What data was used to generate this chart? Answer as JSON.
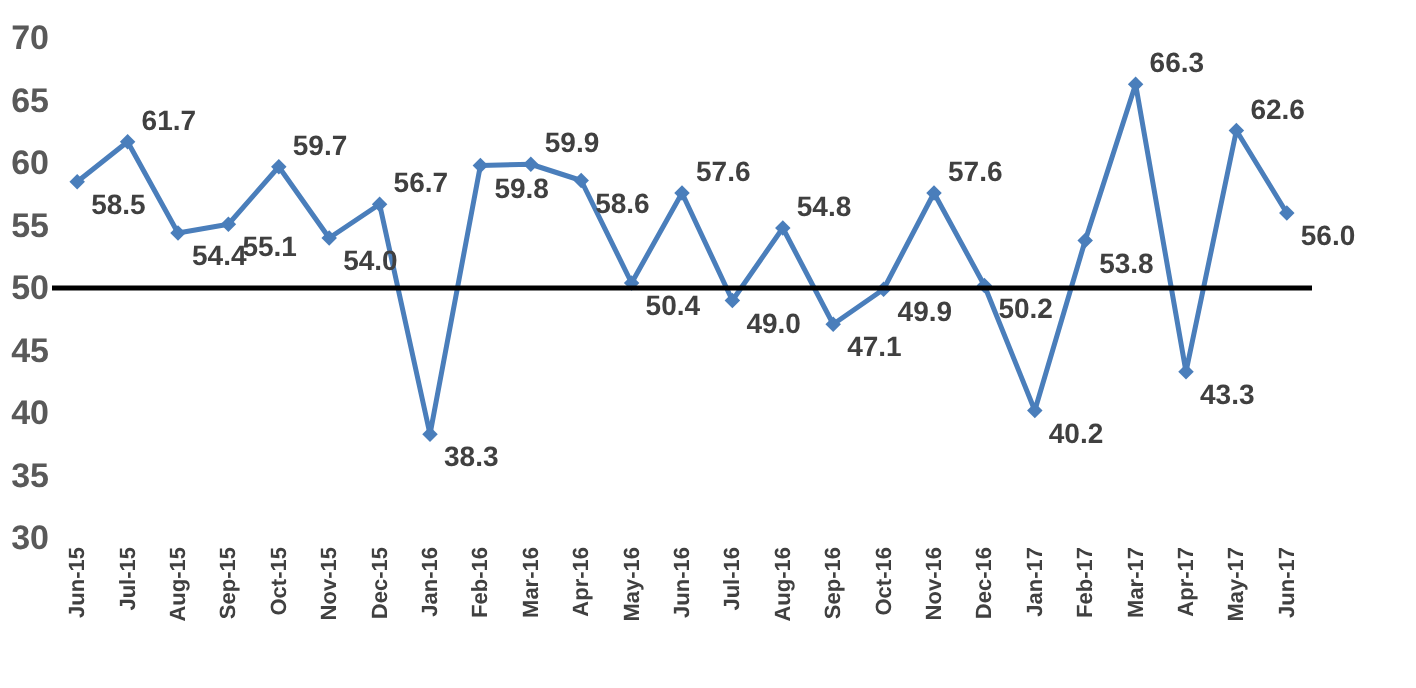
{
  "chart_data": {
    "type": "line",
    "categories": [
      "Jun-15",
      "Jul-15",
      "Aug-15",
      "Sep-15",
      "Oct-15",
      "Nov-15",
      "Dec-15",
      "Jan-16",
      "Feb-16",
      "Mar-16",
      "Apr-16",
      "May-16",
      "Jun-16",
      "Jul-16",
      "Aug-16",
      "Sep-16",
      "Oct-16",
      "Nov-16",
      "Dec-16",
      "Jan-17",
      "Feb-17",
      "Mar-17",
      "Apr-17",
      "May-17",
      "Jun-17"
    ],
    "series": [
      {
        "color": "#4a7ebb",
        "values": [
          58.5,
          61.7,
          54.4,
          55.1,
          59.7,
          54.0,
          56.7,
          38.3,
          59.8,
          59.9,
          58.6,
          50.4,
          57.6,
          49.0,
          54.8,
          47.1,
          49.9,
          57.6,
          50.2,
          40.2,
          53.8,
          66.3,
          43.3,
          62.6,
          56.0
        ],
        "value_labels": [
          "58.5",
          "61.7",
          "54.4",
          "55.1",
          "59.7",
          "54.0",
          "56.7",
          "38.3",
          "59.8",
          "59.9",
          "58.6",
          "50.4",
          "57.6",
          "49.0",
          "54.8",
          "47.1",
          "49.9",
          "57.6",
          "50.2",
          "40.2",
          "53.8",
          "66.3",
          "43.3",
          "62.6",
          "56.0"
        ]
      }
    ],
    "ylim": [
      30,
      70
    ],
    "yticks": [
      30,
      35,
      40,
      45,
      50,
      55,
      60,
      65,
      70
    ],
    "ref_lines": [
      {
        "axis": "y",
        "value": 50,
        "color": "#000000"
      }
    ],
    "marker": "diamond",
    "line_style": "solid",
    "grid": false
  }
}
